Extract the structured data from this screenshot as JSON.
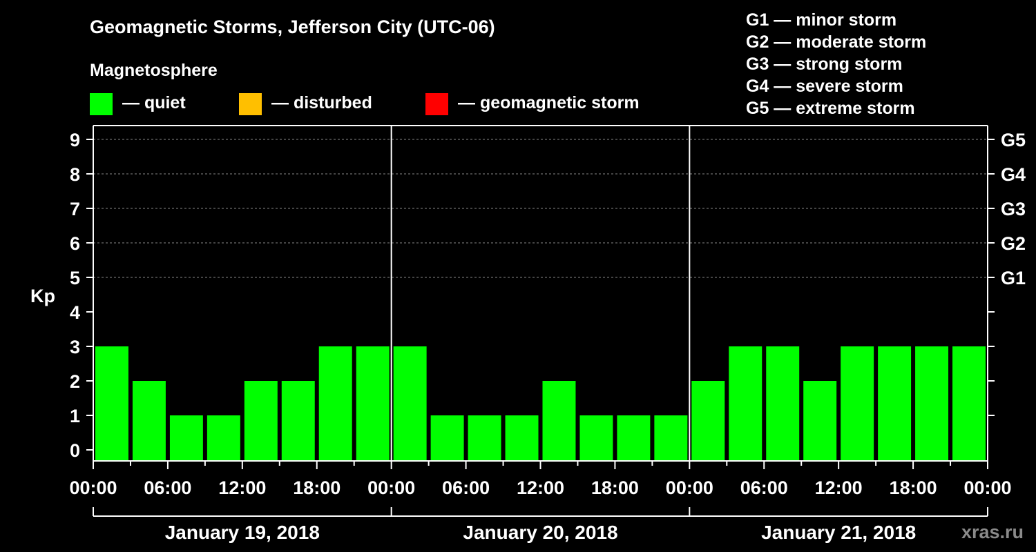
{
  "chart_data": {
    "type": "bar",
    "title": "Geomagnetic Storms, Jefferson City (UTC-06)",
    "subtitle": "Magnetosphere",
    "ylabel": "Kp",
    "ylim": [
      0,
      9
    ],
    "yticks": [
      "0",
      "1",
      "2",
      "3",
      "4",
      "5",
      "6",
      "7",
      "8",
      "9"
    ],
    "right_axis_labels": [
      {
        "kp": 5,
        "label": "G1"
      },
      {
        "kp": 6,
        "label": "G2"
      },
      {
        "kp": 7,
        "label": "G3"
      },
      {
        "kp": 8,
        "label": "G4"
      },
      {
        "kp": 9,
        "label": "G5"
      }
    ],
    "xtick_labels": [
      "00:00",
      "06:00",
      "12:00",
      "18:00",
      "00:00",
      "06:00",
      "12:00",
      "18:00",
      "00:00",
      "06:00",
      "12:00",
      "18:00",
      "00:00"
    ],
    "days": [
      "January 19, 2018",
      "January 20, 2018",
      "January 21, 2018"
    ],
    "interval_hours": 3,
    "values": [
      3,
      2,
      1,
      1,
      2,
      2,
      3,
      3,
      3,
      1,
      1,
      1,
      2,
      1,
      1,
      1,
      2,
      3,
      3,
      2,
      3,
      3,
      3,
      3
    ],
    "legend": {
      "items": [
        {
          "label": "— quiet",
          "color": "#00ff00"
        },
        {
          "label": "— disturbed",
          "color": "#ffbf00"
        },
        {
          "label": "— geomagnetic storm",
          "color": "#ff0000"
        }
      ]
    },
    "storm_scale": [
      "G1 — minor storm",
      "G2 — moderate storm",
      "G3 — strong storm",
      "G4 — severe storm",
      "G5 — extreme storm"
    ],
    "watermark": "xras.ru",
    "colors": {
      "quiet": "#00ff00",
      "disturbed": "#ffbf00",
      "storm": "#ff0000",
      "axis": "#ffffff",
      "grid": "#888888",
      "watermark": "#8a8a8a"
    }
  }
}
